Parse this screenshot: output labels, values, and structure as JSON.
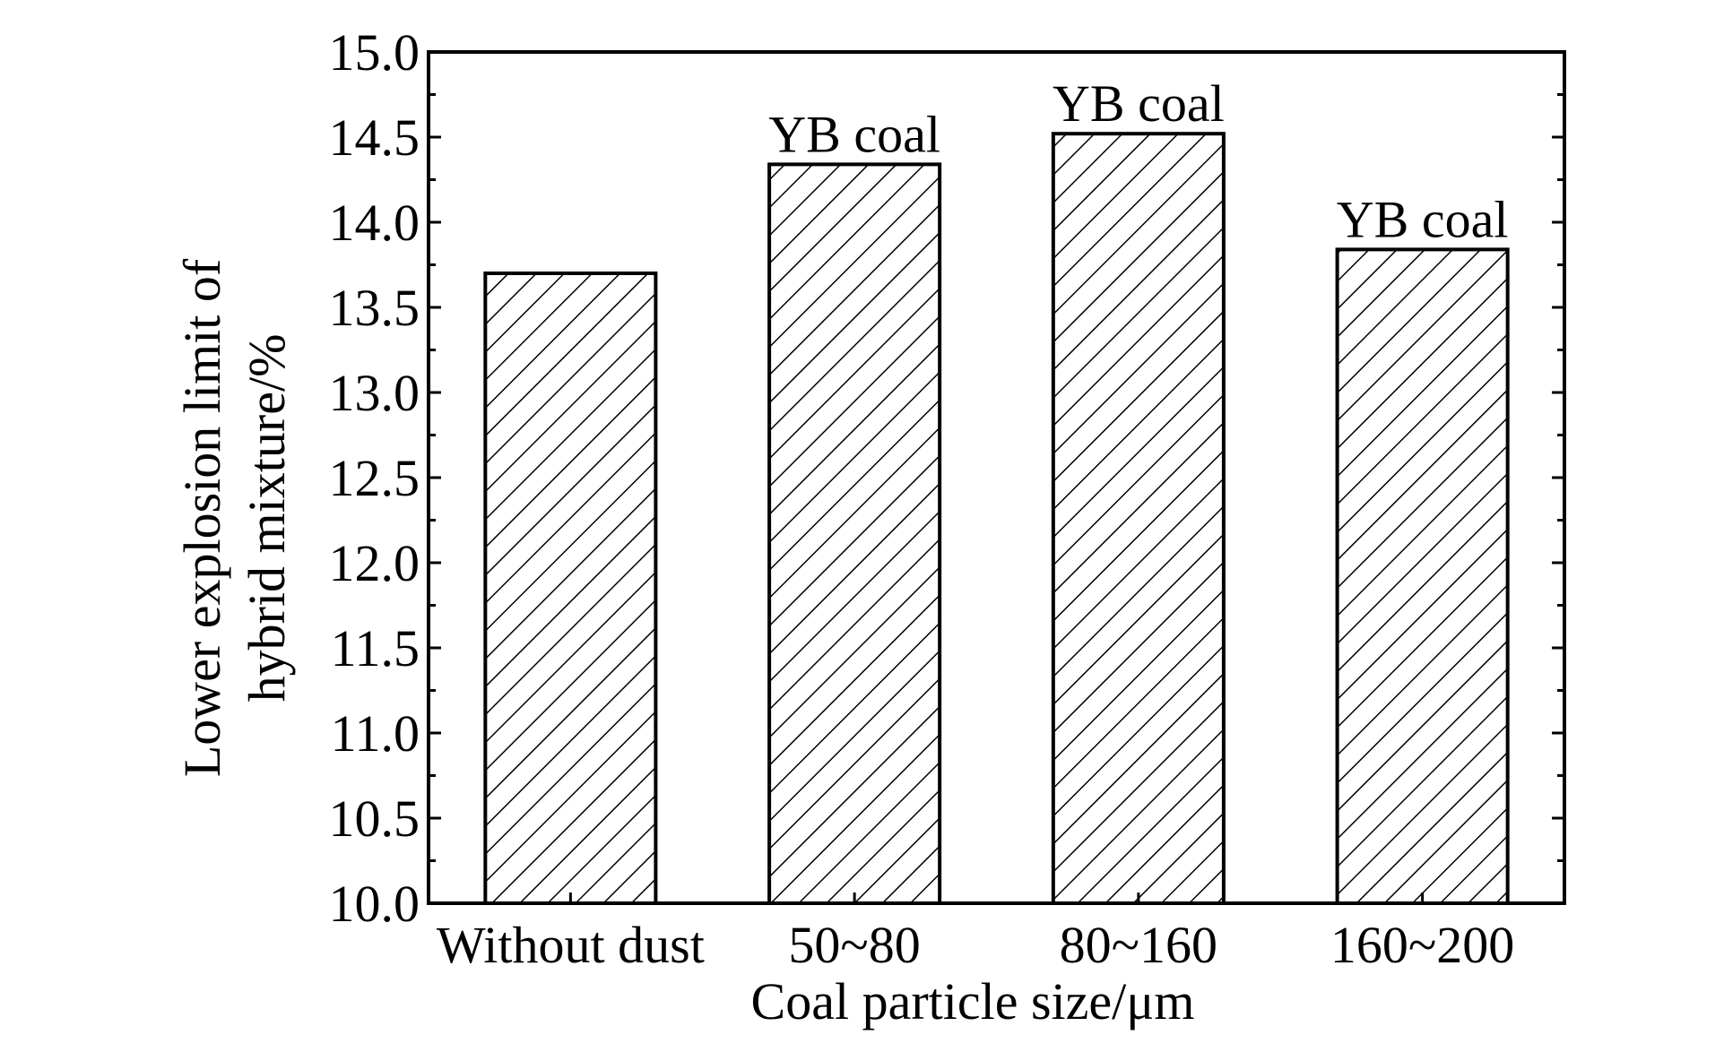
{
  "chart_data": {
    "type": "bar",
    "categories": [
      "Without dust",
      "50~80",
      "80~160",
      "160~200"
    ],
    "values": [
      13.7,
      14.34,
      14.52,
      13.84
    ],
    "bar_annotations": [
      "",
      "YB coal",
      "YB coal",
      "YB coal"
    ],
    "xlabel": "Coal particle size/μm",
    "ylabel_lines": [
      "Lower explosion limit of",
      "hybrid mixture/%"
    ],
    "ylim": [
      10.0,
      15.0
    ],
    "yticks": [
      "10.0",
      "10.5",
      "11.0",
      "11.5",
      "12.0",
      "12.5",
      "13.0",
      "13.5",
      "14.0",
      "14.5",
      "15.0"
    ],
    "bar_fill": "diagonal-hatch",
    "colors": {
      "bar_edge": "#000000",
      "hatch": "#000000",
      "background": "#ffffff"
    },
    "grid": false,
    "legend": "none"
  }
}
